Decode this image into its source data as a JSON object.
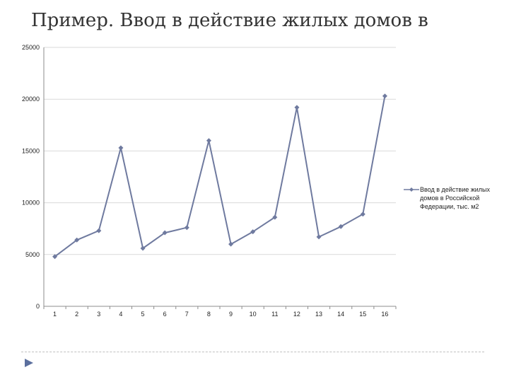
{
  "slide": {
    "title": "Пример. Ввод в действие жилых домов в"
  },
  "colors": {
    "series": "#6f7a9f",
    "axis": "#8c8c8c",
    "grid": "#d9d9d9",
    "nav_arrow": "#5b6f9e"
  },
  "nav": {
    "icon": "triangle-right-icon"
  },
  "chart_data": {
    "type": "line",
    "x": [
      1,
      2,
      3,
      4,
      5,
      6,
      7,
      8,
      9,
      10,
      11,
      12,
      13,
      14,
      15,
      16
    ],
    "categories": [
      "1",
      "2",
      "3",
      "4",
      "5",
      "6",
      "7",
      "8",
      "9",
      "10",
      "11",
      "12",
      "13",
      "14",
      "15",
      "16"
    ],
    "series": [
      {
        "name": "Ввод в действие жилых домов в Российской Федерации, тыс. м2",
        "values": [
          4800,
          6400,
          7300,
          15300,
          5600,
          7100,
          7600,
          16000,
          6000,
          7200,
          8600,
          19200,
          6700,
          7700,
          8900,
          20300
        ],
        "marker": "diamond"
      }
    ],
    "ylim": [
      0,
      25000
    ],
    "yticks": [
      0,
      5000,
      10000,
      15000,
      20000,
      25000
    ],
    "grid": {
      "horizontal": true,
      "vertical": false
    },
    "legend": "right",
    "title": "",
    "xlabel": "",
    "ylabel": ""
  }
}
